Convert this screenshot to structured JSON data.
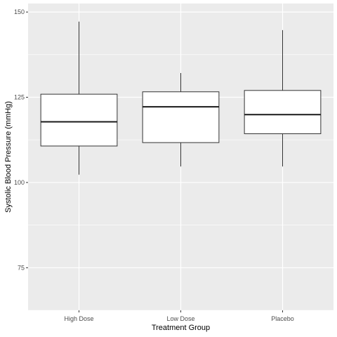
{
  "chart_data": {
    "type": "boxplot",
    "title": "",
    "xlabel": "Treatment Group",
    "ylabel": "Systolic Blood Pressure (mmHg)",
    "categories": [
      "High Dose",
      "Low Dose",
      "Placebo"
    ],
    "boxes": [
      {
        "category": "High Dose",
        "whisker_low": 102.3,
        "q1": 110.7,
        "median": 117.8,
        "q3": 125.9,
        "whisker_high": 147.2
      },
      {
        "category": "Low Dose",
        "whisker_low": 104.7,
        "q1": 111.7,
        "median": 122.2,
        "q3": 126.6,
        "whisker_high": 132.1
      },
      {
        "category": "Placebo",
        "whisker_low": 104.7,
        "q1": 114.3,
        "median": 119.9,
        "q3": 127.0,
        "whisker_high": 144.7
      }
    ],
    "y_ticks": [
      75,
      100,
      125,
      150
    ],
    "y_tick_labels": [
      "75",
      "100",
      "125",
      "150"
    ],
    "ylim": [
      62.5,
      152.5
    ],
    "grid": true,
    "legend": "none",
    "colors": {
      "panel_background": "#ebebeb",
      "grid_major": "#ffffff",
      "box_fill": "#ffffff",
      "box_stroke": "#333333",
      "median": "#1a1a1a"
    }
  }
}
